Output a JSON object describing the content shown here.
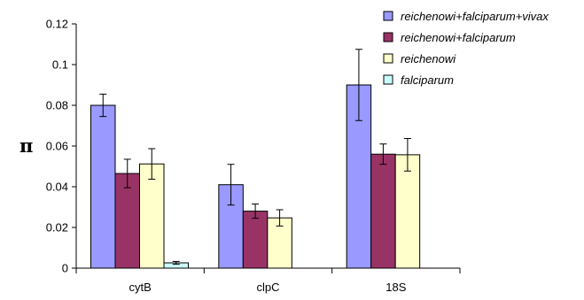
{
  "chart_data": {
    "type": "bar",
    "ylabel": "π",
    "ylim": [
      0,
      0.12
    ],
    "yticks": [
      "0",
      "0.02",
      "0.04",
      "0.06",
      "0.08",
      "0.1",
      "0.12"
    ],
    "categories": [
      "cytB",
      "clpC",
      "18S"
    ],
    "series": [
      {
        "name": "reichenowi+falciparum+vivax",
        "color": "#9999ff",
        "values": [
          0.08,
          0.041,
          0.09
        ],
        "errors": [
          0.0055,
          0.01,
          0.0175
        ]
      },
      {
        "name": "reichenowi+falciparum",
        "color": "#993366",
        "values": [
          0.0465,
          0.028,
          0.056
        ],
        "errors": [
          0.007,
          0.0035,
          0.005
        ]
      },
      {
        "name": "reichenowi",
        "color": "#ffffcc",
        "values": [
          0.0512,
          0.0247,
          0.0557
        ],
        "errors": [
          0.0075,
          0.004,
          0.008
        ]
      },
      {
        "name": "falciparum",
        "color": "#ccffff",
        "values": [
          0.0026,
          0.0,
          0.0
        ],
        "errors": [
          0.0007,
          0.0,
          0.0
        ]
      }
    ],
    "grid": false,
    "legend": "top-right"
  }
}
